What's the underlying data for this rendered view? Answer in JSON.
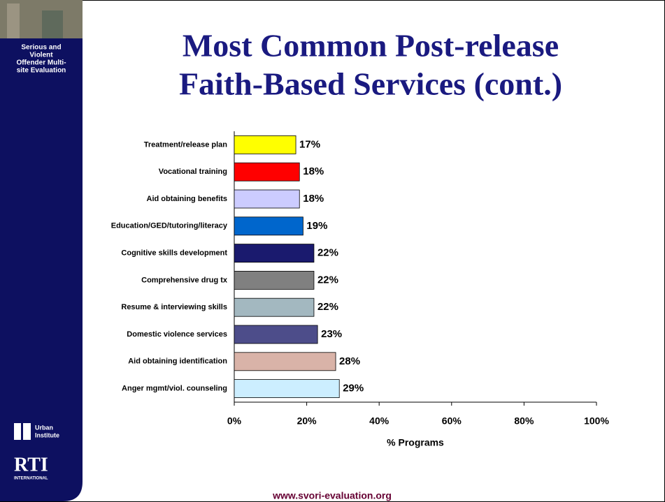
{
  "chart_data": {
    "type": "bar",
    "orientation": "horizontal",
    "title": [
      "Most Common Post-release",
      "Faith-Based Services (cont.)"
    ],
    "categories": [
      "Treatment/release plan",
      "Vocational training",
      "Aid obtaining benefits",
      "Education/GED/tutoring/literacy",
      "Cognitive skills development",
      "Comprehensive drug tx",
      "Resume & interviewing skills",
      "Domestic violence services",
      "Aid obtaining identification",
      "Anger mgmt/viol. counseling"
    ],
    "values": [
      17,
      18,
      18,
      19,
      22,
      22,
      22,
      23,
      28,
      29
    ],
    "value_labels": [
      "17%",
      "18%",
      "18%",
      "19%",
      "22%",
      "22%",
      "22%",
      "23%",
      "28%",
      "29%"
    ],
    "colors": [
      "#ffff00",
      "#ff0000",
      "#ccccff",
      "#0066cc",
      "#1a1a6e",
      "#808080",
      "#a3b8c0",
      "#4d4d8a",
      "#d9b3a8",
      "#cceeff"
    ],
    "xlim": [
      0,
      100
    ],
    "xticks": [
      {
        "value": 0,
        "label": "0%"
      },
      {
        "value": 20,
        "label": "20%"
      },
      {
        "value": 40,
        "label": "40%"
      },
      {
        "value": 60,
        "label": "60%"
      },
      {
        "value": 80,
        "label": "80%"
      },
      {
        "value": 100,
        "label": "100%"
      }
    ],
    "xlabel": "% Programs",
    "grid": false
  },
  "sidebar": {
    "program": [
      "Serious and",
      "Violent",
      "Offender Multi-",
      "site Evaluation"
    ],
    "urban": [
      "Urban",
      "Institute"
    ],
    "rti": [
      "RTI",
      "INTERNATIONAL"
    ]
  },
  "footer": "www.svori-evaluation.org"
}
